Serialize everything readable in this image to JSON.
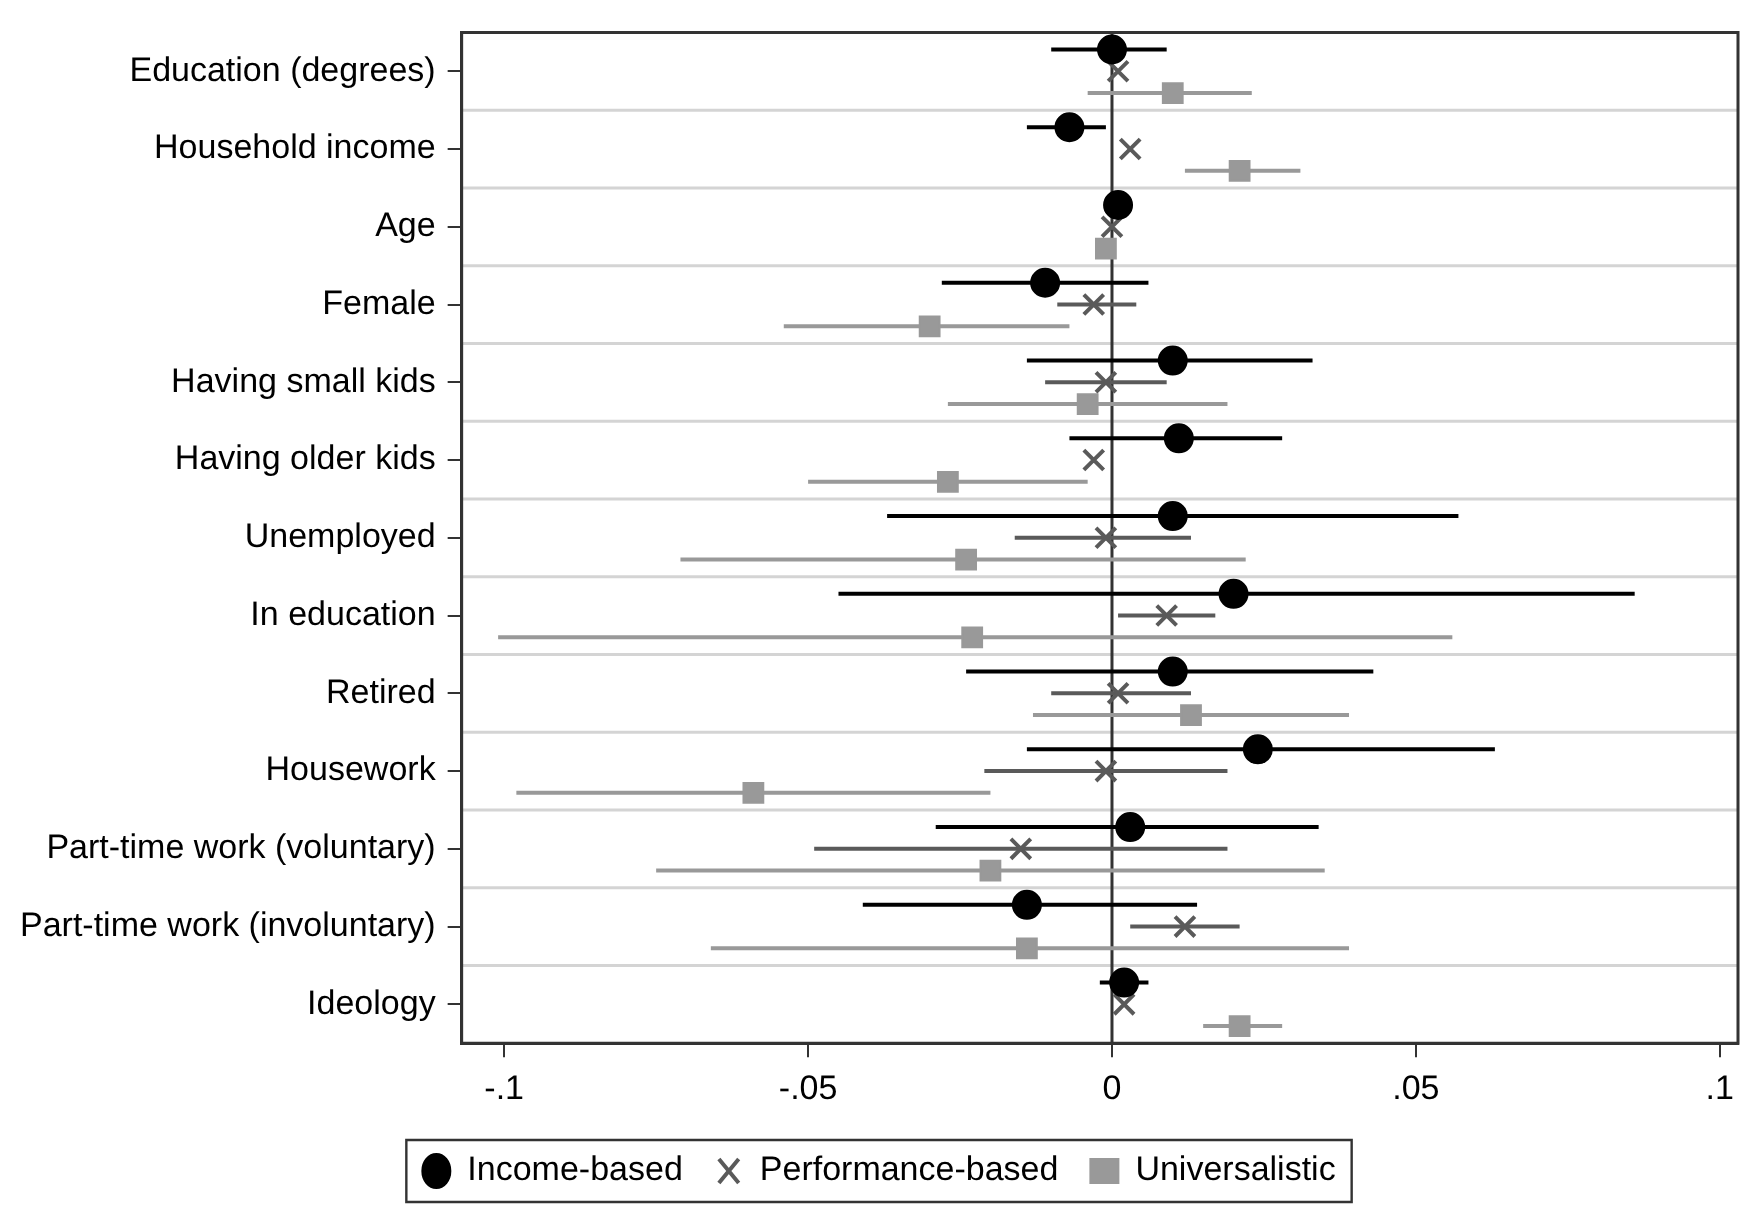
{
  "chart_data": {
    "type": "scatter",
    "orientation": "horizontal",
    "categories": [
      "Education (degrees)",
      "Household income",
      "Age",
      "Female",
      "Having small kids",
      "Having older kids",
      "Unemployed",
      "In education",
      "Retired",
      "Housework",
      "Part-time work (voluntary)",
      "Part-time work (involuntary)",
      "Ideology"
    ],
    "series": [
      {
        "name": "Income-based",
        "color": "#000000",
        "marker": "circle",
        "values": [
          0.0,
          -0.007,
          0.001,
          -0.011,
          0.01,
          0.011,
          0.01,
          0.02,
          0.01,
          0.024,
          0.003,
          -0.014,
          0.002
        ],
        "errors": [
          [
            -0.01,
            0.009
          ],
          [
            -0.014,
            -0.001
          ],
          null,
          [
            -0.028,
            0.006
          ],
          [
            -0.014,
            0.033
          ],
          [
            -0.007,
            0.028
          ],
          [
            -0.037,
            0.057
          ],
          [
            -0.045,
            0.086
          ],
          [
            -0.024,
            0.043
          ],
          [
            -0.014,
            0.063
          ],
          [
            -0.029,
            0.034
          ],
          [
            -0.041,
            0.014
          ],
          [
            -0.002,
            0.006
          ]
        ]
      },
      {
        "name": "Performance-based",
        "color": "#5a5a5a",
        "marker": "cross",
        "values": [
          0.001,
          0.003,
          0.0,
          -0.003,
          -0.001,
          -0.003,
          -0.001,
          0.009,
          0.001,
          -0.001,
          -0.015,
          0.012,
          0.002
        ],
        "errors": [
          null,
          null,
          null,
          [
            -0.009,
            0.004
          ],
          [
            -0.011,
            0.009
          ],
          null,
          [
            -0.016,
            0.013
          ],
          [
            0.001,
            0.017
          ],
          [
            -0.01,
            0.013
          ],
          [
            -0.021,
            0.019
          ],
          [
            -0.049,
            0.019
          ],
          [
            0.003,
            0.021
          ],
          null
        ]
      },
      {
        "name": "Universalistic",
        "color": "#999999",
        "marker": "square",
        "values": [
          0.01,
          0.021,
          -0.001,
          -0.03,
          -0.004,
          -0.027,
          -0.024,
          -0.023,
          0.013,
          -0.059,
          -0.02,
          -0.014,
          0.021
        ],
        "errors": [
          [
            -0.004,
            0.023
          ],
          [
            0.012,
            0.031
          ],
          null,
          [
            -0.054,
            -0.007
          ],
          [
            -0.027,
            0.019
          ],
          [
            -0.05,
            -0.004
          ],
          [
            -0.071,
            0.022
          ],
          [
            -0.101,
            0.056
          ],
          [
            -0.013,
            0.039
          ],
          [
            -0.098,
            -0.02
          ],
          [
            -0.075,
            0.035
          ],
          [
            -0.066,
            0.039
          ],
          [
            0.015,
            0.028
          ]
        ]
      }
    ],
    "xlim": [
      -0.107,
      0.103
    ],
    "xticks": [
      {
        "value": -0.1,
        "label": "-.1"
      },
      {
        "value": -0.05,
        "label": "-.05"
      },
      0,
      {
        "value": 0.05,
        "label": ".05"
      },
      {
        "value": 0.1,
        "label": ".1"
      }
    ],
    "ref_lines": [
      {
        "axis": "x",
        "value": 0,
        "color": "#333333"
      }
    ],
    "grid": "y",
    "legend": "bottom"
  }
}
